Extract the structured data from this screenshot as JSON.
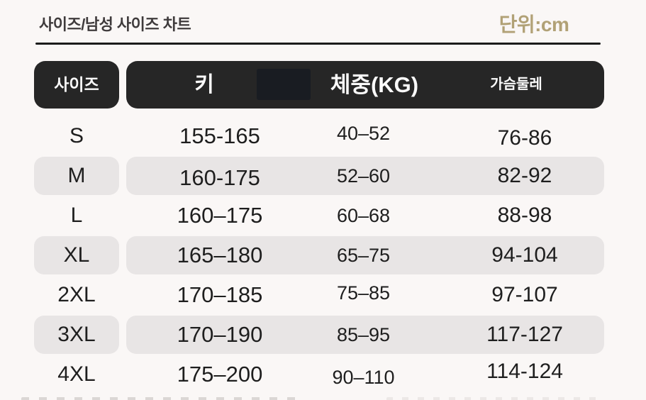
{
  "page": {
    "title": "사이즈/남성 사이즈 차트",
    "unit_label": "단위:cm"
  },
  "chart_data": {
    "type": "table",
    "title": "사이즈/남성 사이즈 차트",
    "unit": "cm",
    "columns": [
      "사이즈",
      "키",
      "체중(KG)",
      "가슴둘레"
    ],
    "rows": [
      [
        "S",
        "155-165",
        "40–52",
        "76-86"
      ],
      [
        "M",
        "160-175",
        "52–60",
        "82-92"
      ],
      [
        "L",
        "160–175",
        "60–68",
        "88-98"
      ],
      [
        "XL",
        "165–180",
        "65–75",
        "94-104"
      ],
      [
        "2XL",
        "170–185",
        "75–85",
        "97-107"
      ],
      [
        "3XL",
        "170–190",
        "85–95",
        "117-127"
      ],
      [
        "4XL",
        "175–200",
        "90–110",
        "114-124"
      ]
    ],
    "striped_row_indexes": [
      1,
      3,
      5
    ],
    "layout": {
      "legend": "none",
      "grid": "off",
      "header_style": "black-rounded-bar"
    }
  },
  "colors": {
    "background": "#faf7f6",
    "header_bar": "#262626",
    "header_patch": "#191c22",
    "header_text": "#fafafa",
    "row_stripe": "#e8e5e5",
    "cell_text": "#1e1e1e",
    "title_text": "#3f3b3c",
    "unit_text": "#b1a176",
    "divider": "#1b1b1b"
  }
}
